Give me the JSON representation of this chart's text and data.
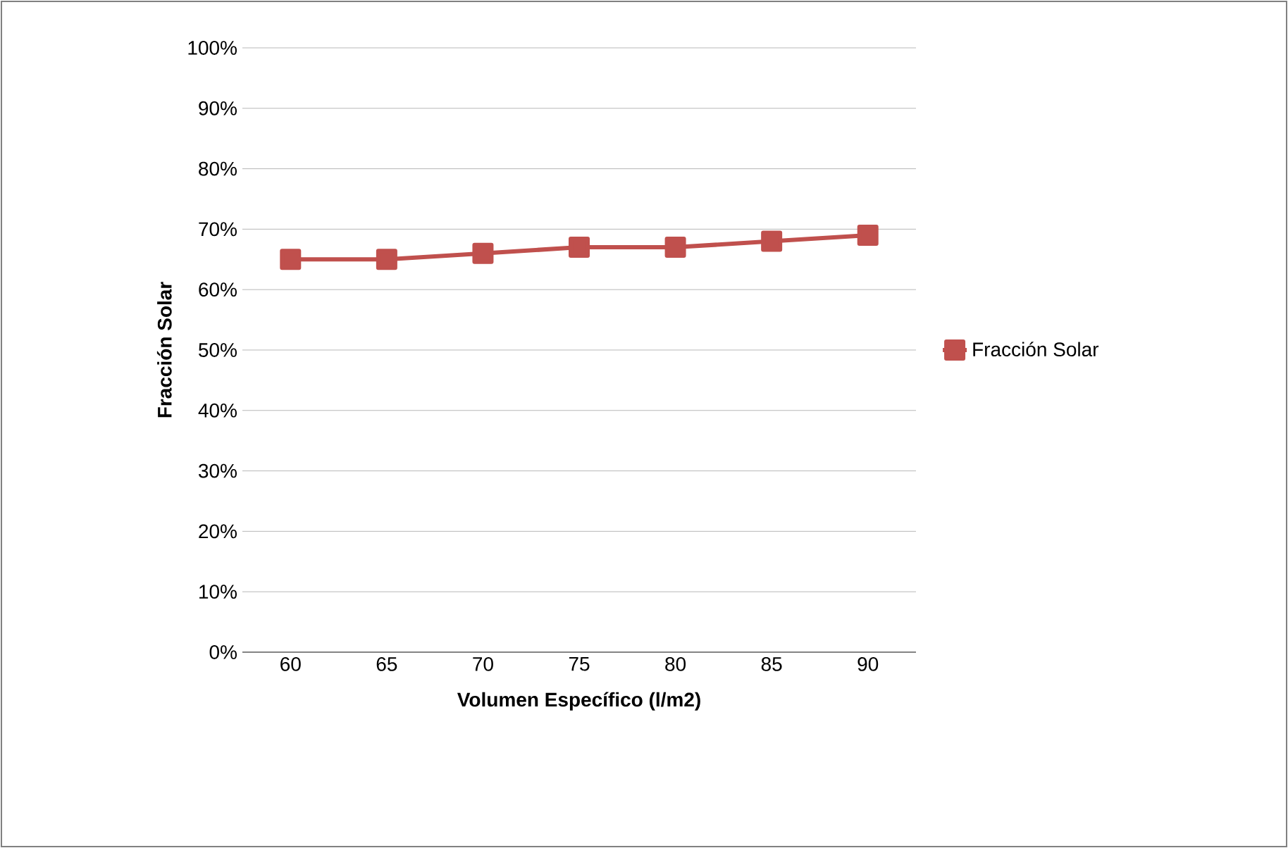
{
  "chart_data": {
    "type": "line",
    "xlabel": "Volumen Específico (l/m2)",
    "ylabel": "Fracción Solar",
    "categories": [
      "60",
      "65",
      "70",
      "75",
      "80",
      "85",
      "90"
    ],
    "series": [
      {
        "name": "Fracción Solar",
        "color": "#c0504d",
        "values": [
          65,
          65,
          66,
          67,
          67,
          68,
          69
        ]
      }
    ],
    "ylim": [
      0,
      100
    ],
    "yticks": [
      {
        "value": 0,
        "label": "0%"
      },
      {
        "value": 10,
        "label": "10%"
      },
      {
        "value": 20,
        "label": "20%"
      },
      {
        "value": 30,
        "label": "30%"
      },
      {
        "value": 40,
        "label": "40%"
      },
      {
        "value": 50,
        "label": "50%"
      },
      {
        "value": 60,
        "label": "60%"
      },
      {
        "value": 70,
        "label": "70%"
      },
      {
        "value": 80,
        "label": "80%"
      },
      {
        "value": 90,
        "label": "90%"
      },
      {
        "value": 100,
        "label": "100%"
      }
    ],
    "grid": "y",
    "legend": "right",
    "marker": "square",
    "line_style": "solid"
  }
}
